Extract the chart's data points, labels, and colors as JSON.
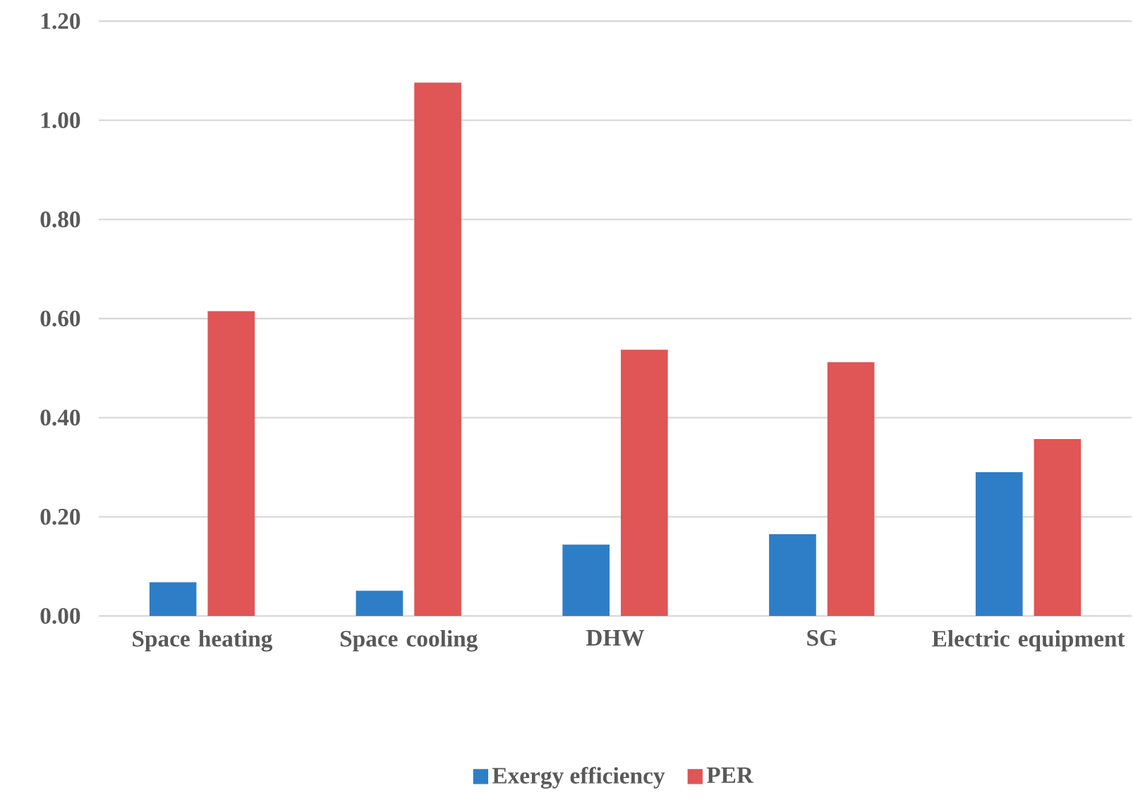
{
  "chart_data": {
    "type": "bar",
    "categories": [
      "Space heating",
      "Space cooling",
      "DHW",
      "SG",
      "Electric equipment"
    ],
    "series": [
      {
        "name": "Exergy efficiency",
        "color": "#2e7ec7",
        "values": [
          0.068,
          0.051,
          0.144,
          0.165,
          0.29
        ]
      },
      {
        "name": "PER",
        "color": "#e05555",
        "values": [
          0.615,
          1.076,
          0.537,
          0.512,
          0.357
        ]
      }
    ],
    "ylim": [
      0,
      1.2
    ],
    "yticks": [
      {
        "value": 0,
        "label": "0.00"
      },
      {
        "value": 0.2,
        "label": "0.20"
      },
      {
        "value": 0.4,
        "label": "0.40"
      },
      {
        "value": 0.6,
        "label": "0.60"
      },
      {
        "value": 0.8,
        "label": "0.80"
      },
      {
        "value": 1.0,
        "label": "1.00"
      },
      {
        "value": 1.2,
        "label": "1.20"
      }
    ],
    "grid": "y",
    "legend": "bottom"
  }
}
